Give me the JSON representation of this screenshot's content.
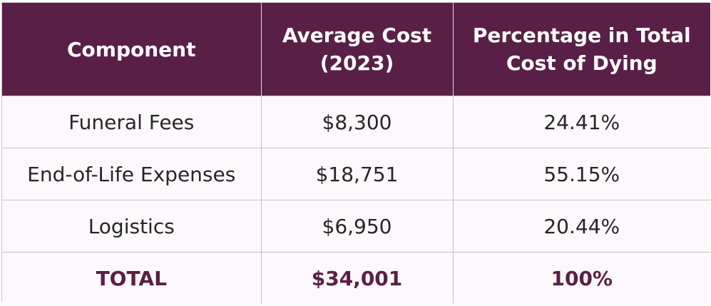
{
  "table": {
    "headers": [
      "Component",
      "Average Cost (2023)",
      "Percentage in Total Cost of Dying"
    ],
    "rows": [
      [
        "Funeral Fees",
        "$8,300",
        "24.41%"
      ],
      [
        "End-of-Life Expenses",
        "$18,751",
        "55.15%"
      ],
      [
        "Logistics",
        "$6,950",
        "20.44%"
      ]
    ],
    "total": [
      "TOTAL",
      "$34,001",
      "100%"
    ]
  },
  "colors": {
    "header_bg": "#5a1f46",
    "header_text": "#ffffff",
    "row_bg": "#fcf8fb",
    "body_text": "#262626",
    "total_text": "#5a1f46",
    "border": "#c9c2c8"
  }
}
